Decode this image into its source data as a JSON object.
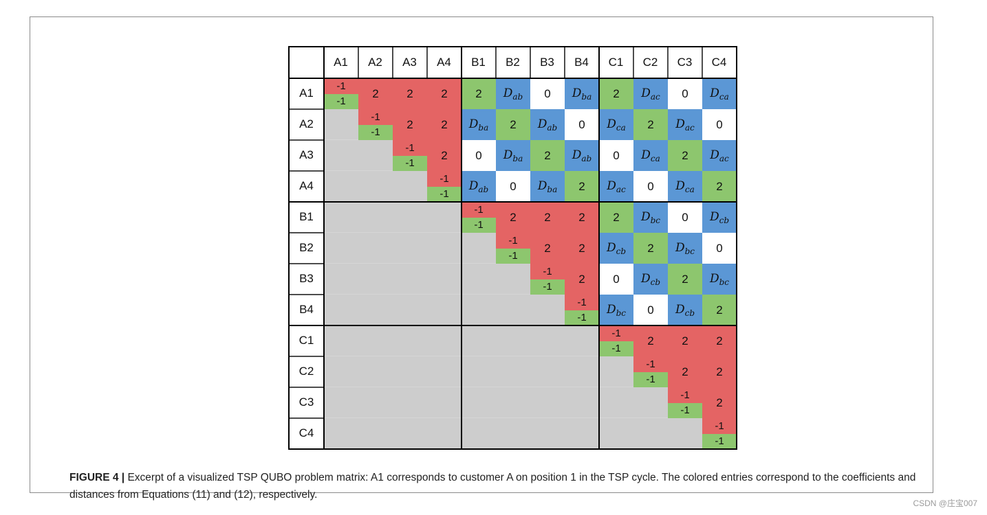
{
  "matrix": {
    "labels": [
      "A1",
      "A2",
      "A3",
      "A4",
      "B1",
      "B2",
      "B3",
      "B4",
      "C1",
      "C2",
      "C3",
      "C4"
    ],
    "coefficient_pair": [
      "-1",
      "-1"
    ],
    "rows": [
      [
        "S",
        "R2",
        "R2",
        "R2",
        "G2",
        "Dab",
        "0",
        "Dba",
        "G2",
        "Dac",
        "0",
        "Dca"
      ],
      [
        "X",
        "S",
        "R2",
        "R2",
        "Dba",
        "G2",
        "Dab",
        "0",
        "Dca",
        "G2",
        "Dac",
        "0"
      ],
      [
        "X",
        "X",
        "S",
        "R2",
        "0",
        "Dba",
        "G2",
        "Dab",
        "0",
        "Dca",
        "G2",
        "Dac"
      ],
      [
        "X",
        "X",
        "X",
        "S",
        "Dab",
        "0",
        "Dba",
        "G2",
        "Dac",
        "0",
        "Dca",
        "G2"
      ],
      [
        "X",
        "X",
        "X",
        "X",
        "S",
        "R2",
        "R2",
        "R2",
        "G2",
        "Dbc",
        "0",
        "Dcb"
      ],
      [
        "X",
        "X",
        "X",
        "X",
        "X",
        "S",
        "R2",
        "R2",
        "Dcb",
        "G2",
        "Dbc",
        "0"
      ],
      [
        "X",
        "X",
        "X",
        "X",
        "X",
        "X",
        "S",
        "R2",
        "0",
        "Dcb",
        "G2",
        "Dbc"
      ],
      [
        "X",
        "X",
        "X",
        "X",
        "X",
        "X",
        "X",
        "S",
        "Dbc",
        "0",
        "Dcb",
        "G2"
      ],
      [
        "X",
        "X",
        "X",
        "X",
        "X",
        "X",
        "X",
        "X",
        "S",
        "R2",
        "R2",
        "R2"
      ],
      [
        "X",
        "X",
        "X",
        "X",
        "X",
        "X",
        "X",
        "X",
        "X",
        "S",
        "R2",
        "R2"
      ],
      [
        "X",
        "X",
        "X",
        "X",
        "X",
        "X",
        "X",
        "X",
        "X",
        "X",
        "S",
        "R2"
      ],
      [
        "X",
        "X",
        "X",
        "X",
        "X",
        "X",
        "X",
        "X",
        "X",
        "X",
        "X",
        "S"
      ]
    ],
    "colors": {
      "red": "#e46464",
      "green": "#8dc66e",
      "blue": "#5b97d5",
      "gray": "#cdcdcd",
      "white": "#ffffff"
    }
  },
  "caption": {
    "label": "FIGURE 4 |",
    "text": " Excerpt of a visualized TSP QUBO problem matrix: A1 corresponds to customer A on position 1 in the TSP cycle. The colored entries correspond to the coefficients and distances from Equations (11) and (12), respectively."
  },
  "watermark": "CSDN @庄宝007"
}
